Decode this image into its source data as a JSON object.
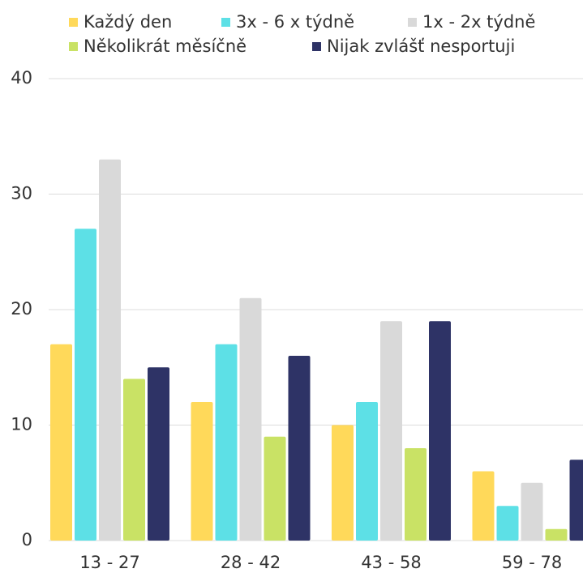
{
  "chart_data": {
    "type": "bar",
    "categories": [
      "13 - 27",
      "28 - 42",
      "43 - 58",
      "59 - 78"
    ],
    "series": [
      {
        "name": "Každý den",
        "color": "#ffd95a",
        "values": [
          17,
          12,
          10,
          6
        ]
      },
      {
        "name": "3x - 6 x týdně",
        "color": "#5de0e6",
        "values": [
          27,
          17,
          12,
          3
        ]
      },
      {
        "name": "1x - 2x týdně",
        "color": "#d9d9d9",
        "values": [
          33,
          21,
          19,
          5
        ]
      },
      {
        "name": "Několikrát měsíčně",
        "color": "#c9e265",
        "values": [
          14,
          9,
          8,
          1
        ]
      },
      {
        "name": "Nijak zvlášť nesportuji",
        "color": "#2e3366",
        "values": [
          15,
          16,
          19,
          7
        ]
      }
    ],
    "ylim": [
      0,
      40
    ],
    "yticks": [
      0,
      10,
      20,
      30,
      40
    ],
    "grid": true
  }
}
